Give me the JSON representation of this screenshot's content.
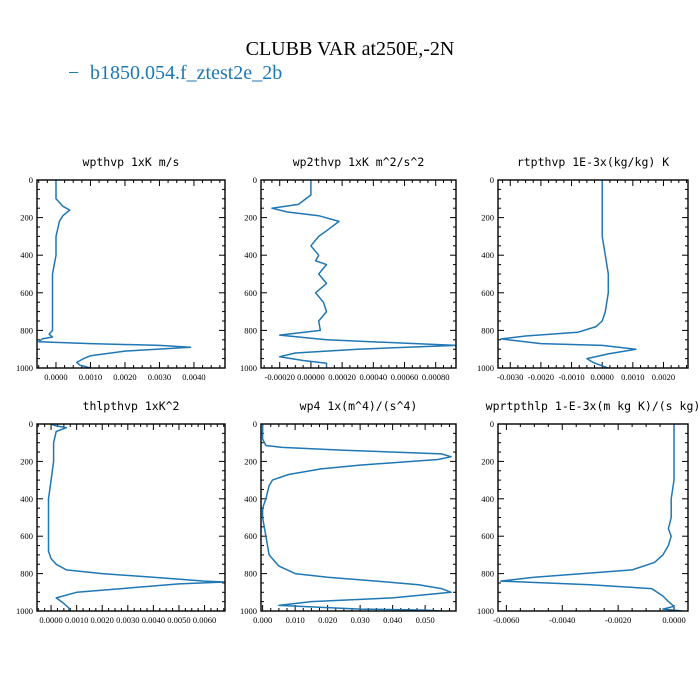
{
  "title": "CLUBB VAR at250E,-2N",
  "legend": {
    "marker": "−",
    "label": "b1850.054.f_ztest2e_2b",
    "color": "#1f77b4"
  },
  "series_color": "#1f77b4",
  "chart_data": [
    {
      "type": "line",
      "title": "wpthvp   1xK m/s",
      "xlim": [
        -0.00055,
        0.0049
      ],
      "ylim": [
        1000,
        0
      ],
      "xticks": [
        0,
        0.001,
        0.002,
        0.003,
        0.004
      ],
      "xticklabels": [
        "0.0000",
        "0.0010",
        "0.0020",
        "0.0030",
        "0.0040"
      ],
      "yticks": [
        0,
        200,
        400,
        600,
        800,
        1000
      ],
      "yticklabels": [
        "0",
        "200",
        "400",
        "600",
        "800",
        "1000"
      ],
      "series": [
        {
          "x": [
            0.0,
            0.0,
            0.0,
            0.0002,
            0.0004,
            0.0002,
            0.0001,
            0.0,
            0.0,
            -0.0001,
            -0.0001,
            -0.0001,
            -0.0001,
            -0.0001,
            -0.0001,
            -0.0002,
            -0.0001,
            -0.0004,
            -0.0005,
            0.001,
            0.003,
            0.0039,
            0.002,
            0.001,
            0.0008,
            0.0006,
            0.0007,
            0.001
          ],
          "y": [
            0,
            50,
            100,
            140,
            160,
            190,
            220,
            300,
            400,
            500,
            600,
            700,
            750,
            780,
            800,
            820,
            835,
            845,
            860,
            870,
            880,
            890,
            910,
            935,
            950,
            970,
            985,
            1000
          ]
        }
      ]
    },
    {
      "type": "line",
      "title": "wp2thvp   1xK m^2/s^2",
      "xlim": [
        -0.00032,
        0.00093
      ],
      "ylim": [
        1000,
        0
      ],
      "xticks": [
        -0.0002,
        0,
        0.0002,
        0.0004,
        0.0006,
        0.0008
      ],
      "xticklabels": [
        "-0.00020",
        "0.00000",
        "0.00020",
        "0.00040",
        "0.00060",
        "0.00080"
      ],
      "yticks": [
        0,
        200,
        400,
        600,
        800,
        1000
      ],
      "yticklabels": [
        "0",
        "200",
        "400",
        "600",
        "800",
        "1000"
      ],
      "series": [
        {
          "x": [
            0.0,
            0.0,
            -8e-05,
            -0.00025,
            -0.00015,
            5e-05,
            0.00018,
            0.0001,
            5e-05,
            0.0,
            5e-05,
            3e-05,
            0.0001,
            5e-05,
            0.0001,
            3e-05,
            8e-05,
            0.0001,
            5e-05,
            6e-05,
            -0.0002,
            0.0001,
            0.00093,
            0.0003,
            -0.0001,
            -0.0002,
            -5e-05,
            0.0001,
            0.0001
          ],
          "y": [
            0,
            80,
            130,
            150,
            170,
            190,
            220,
            270,
            300,
            350,
            400,
            430,
            450,
            500,
            550,
            600,
            650,
            700,
            750,
            800,
            825,
            850,
            880,
            900,
            920,
            940,
            960,
            975,
            1000
          ]
        }
      ]
    },
    {
      "type": "line",
      "title": "rtpthvp   1E-3x(kg/kg) K",
      "xlim": [
        -0.0034,
        0.0028
      ],
      "ylim": [
        1000,
        0
      ],
      "xticks": [
        -0.003,
        -0.002,
        -0.001,
        0,
        0.001,
        0.002
      ],
      "xticklabels": [
        "-0.0030",
        "-0.0020",
        "-0.0010",
        "0.0000",
        "0.0010",
        "0.0020"
      ],
      "yticks": [
        0,
        200,
        400,
        600,
        800,
        1000
      ],
      "yticklabels": [
        "0",
        "200",
        "400",
        "600",
        "800",
        "1000"
      ],
      "series": [
        {
          "x": [
            0.0,
            0.0,
            0.0,
            0.0,
            0.0001,
            0.0002,
            0.0002,
            0.0001,
            0.0,
            -0.0002,
            -0.0008,
            -0.0025,
            -0.0033,
            -0.002,
            0.0,
            0.0011,
            0.0002,
            -0.0005,
            -0.0003,
            0.0002
          ],
          "y": [
            0,
            100,
            200,
            300,
            400,
            500,
            600,
            700,
            750,
            780,
            810,
            830,
            845,
            870,
            880,
            900,
            925,
            950,
            970,
            1000
          ]
        }
      ]
    },
    {
      "type": "line",
      "title": "thlpthvp   1xK^2",
      "xlim": [
        -0.00055,
        0.0068
      ],
      "ylim": [
        1000,
        0
      ],
      "xticks": [
        0,
        0.001,
        0.002,
        0.003,
        0.004,
        0.005,
        0.006
      ],
      "xticklabels": [
        "0.0000",
        "0.0010",
        "0.0020",
        "0.0030",
        "0.0040",
        "0.0050",
        "0.0060"
      ],
      "yticks": [
        0,
        200,
        400,
        600,
        800,
        1000
      ],
      "yticklabels": [
        "0",
        "200",
        "400",
        "600",
        "800",
        "1000"
      ],
      "series": [
        {
          "x": [
            0.0,
            0.0002,
            0.0006,
            0.0002,
            0.0001,
            0.0001,
            0.0,
            -0.0001,
            -0.0001,
            -0.0001,
            -0.0001,
            0.0,
            0.0002,
            0.0006,
            0.002,
            0.004,
            0.006,
            0.0068,
            0.005,
            0.001,
            0.0002,
            0.0005,
            0.0007,
            0.0007
          ],
          "y": [
            0,
            10,
            20,
            40,
            100,
            200,
            300,
            400,
            500,
            600,
            680,
            720,
            750,
            780,
            800,
            820,
            840,
            845,
            855,
            900,
            930,
            960,
            985,
            1000
          ]
        }
      ]
    },
    {
      "type": "line",
      "title": "wp4   1x(m^4)/(s^4)",
      "xlim": [
        -0.0005,
        0.0595
      ],
      "ylim": [
        1000,
        0
      ],
      "xticks": [
        0,
        0.01,
        0.02,
        0.03,
        0.04,
        0.05
      ],
      "xticklabels": [
        "0.000",
        "0.010",
        "0.020",
        "0.030",
        "0.040",
        "0.050"
      ],
      "yticks": [
        0,
        200,
        400,
        600,
        800,
        1000
      ],
      "yticklabels": [
        "0",
        "200",
        "400",
        "600",
        "800",
        "1000"
      ],
      "series": [
        {
          "x": [
            0.0,
            0.0,
            0.001,
            0.006,
            0.025,
            0.055,
            0.058,
            0.054,
            0.03,
            0.018,
            0.008,
            0.003,
            0.002,
            0.001,
            0.0,
            0.0,
            0.001,
            0.002,
            0.005,
            0.01,
            0.02,
            0.035,
            0.048,
            0.055,
            0.058,
            0.04,
            0.015,
            0.005,
            0.03,
            0.05,
            0.055
          ],
          "y": [
            0,
            80,
            115,
            125,
            140,
            160,
            175,
            190,
            220,
            240,
            270,
            300,
            330,
            400,
            450,
            500,
            600,
            700,
            760,
            800,
            820,
            840,
            860,
            880,
            900,
            930,
            950,
            970,
            990,
            995,
            1000
          ]
        }
      ]
    },
    {
      "type": "line",
      "title": "wprtpthlp   1-E-3x(m kg K)/(s kg)",
      "xlim": [
        -0.0063,
        0.0005
      ],
      "ylim": [
        1000,
        0
      ],
      "xticks": [
        -0.006,
        -0.004,
        -0.002,
        0
      ],
      "xticklabels": [
        "-0.0060",
        "-0.0040",
        "-0.0020",
        "0.0000"
      ],
      "yticks": [
        0,
        200,
        400,
        600,
        800,
        1000
      ],
      "yticklabels": [
        "0",
        "200",
        "400",
        "600",
        "800",
        "1000"
      ],
      "series": [
        {
          "x": [
            0.0,
            0.0,
            0.0,
            0.0,
            -0.0001,
            -0.0001,
            -0.0002,
            -0.0001,
            -0.0002,
            -0.0004,
            -0.0007,
            -0.0015,
            -0.005,
            -0.0062,
            -0.003,
            -0.0008,
            -0.0004,
            -0.0002,
            0.0,
            -0.0004,
            0.0003
          ],
          "y": [
            0,
            100,
            200,
            300,
            400,
            500,
            560,
            600,
            650,
            700,
            740,
            780,
            820,
            840,
            860,
            880,
            920,
            950,
            975,
            990,
            1000
          ]
        }
      ]
    }
  ]
}
